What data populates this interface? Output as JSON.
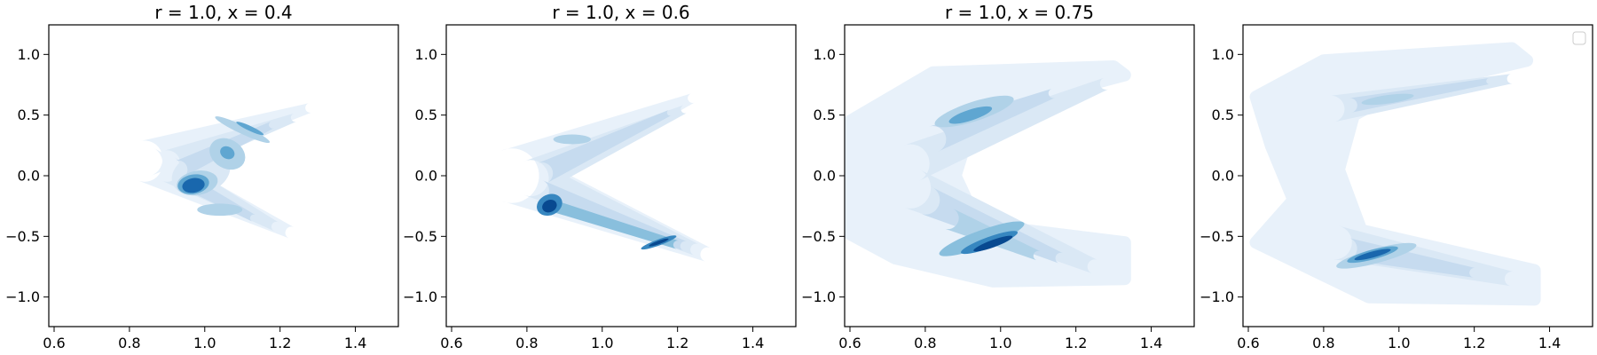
{
  "chart_data": [
    {
      "type": "contour",
      "title": "r = 1.0, x = 0.4",
      "xlim": [
        0.6,
        1.5
      ],
      "ylim": [
        -1.2,
        1.2
      ],
      "xticks": [
        "0.6",
        "0.8",
        "1.0",
        "1.2",
        "1.4"
      ],
      "yticks": [
        "1.0",
        "0.5",
        "0.0",
        "−0.5",
        "−1.0"
      ],
      "legend": false,
      "density_peaks": [
        {
          "x": 0.97,
          "y": -0.08,
          "level": 1.0
        },
        {
          "x": 1.1,
          "y": 0.38,
          "level": 0.55
        },
        {
          "x": 1.06,
          "y": 0.18,
          "level": 0.5
        },
        {
          "x": 1.05,
          "y": -0.32,
          "level": 0.35
        }
      ]
    },
    {
      "type": "contour",
      "title": "r = 1.0, x = 0.6",
      "xlim": [
        0.6,
        1.5
      ],
      "ylim": [
        -1.2,
        1.2
      ],
      "xticks": [
        "0.6",
        "0.8",
        "1.0",
        "1.2",
        "1.4"
      ],
      "yticks": [
        "1.0",
        "0.5",
        "0.0",
        "−0.5",
        "−1.0"
      ],
      "legend": false,
      "density_peaks": [
        {
          "x": 0.86,
          "y": -0.25,
          "level": 1.0
        },
        {
          "x": 1.15,
          "y": -0.55,
          "level": 0.9
        },
        {
          "x": 0.9,
          "y": 0.25,
          "level": 0.45
        }
      ]
    },
    {
      "type": "contour",
      "title": "r = 1.0, x = 0.75",
      "xlim": [
        0.6,
        1.5
      ],
      "ylim": [
        -1.2,
        1.2
      ],
      "xticks": [
        "0.6",
        "0.8",
        "1.0",
        "1.2",
        "1.4"
      ],
      "yticks": [
        "1.0",
        "0.5",
        "0.0",
        "−0.5",
        "−1.0"
      ],
      "legend": false,
      "density_peaks": [
        {
          "x": 0.97,
          "y": -0.55,
          "level": 1.0
        },
        {
          "x": 0.93,
          "y": 0.52,
          "level": 0.6
        }
      ]
    },
    {
      "type": "contour",
      "title": "",
      "xlim": [
        0.6,
        1.5
      ],
      "ylim": [
        -1.2,
        1.2
      ],
      "xticks": [
        "0.6",
        "0.8",
        "1.0",
        "1.2",
        "1.4"
      ],
      "yticks": [
        "1.0",
        "0.5",
        "0.0",
        "−0.5",
        "−1.0"
      ],
      "legend": true,
      "density_peaks": [
        {
          "x": 0.93,
          "y": -0.65,
          "level": 1.0
        },
        {
          "x": 0.97,
          "y": 0.62,
          "level": 0.5
        }
      ]
    }
  ],
  "colors": {
    "levels": [
      "#f7fbff",
      "#e8f1fa",
      "#dae8f5",
      "#c6dbef",
      "#b0d2e8",
      "#89bfdd",
      "#5fa6d1",
      "#3787c0",
      "#1967ad",
      "#084990"
    ],
    "axis": "#000000",
    "background": "#ffffff"
  }
}
